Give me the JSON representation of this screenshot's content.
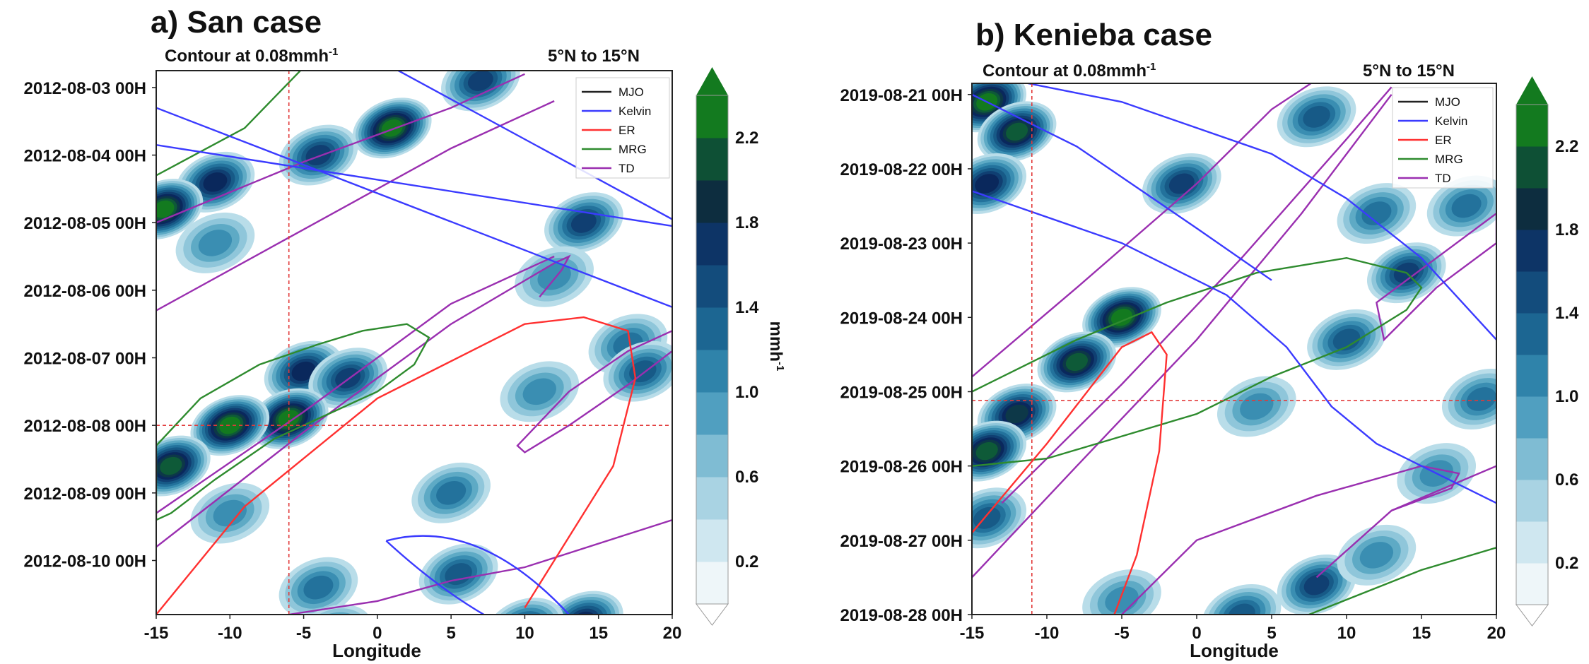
{
  "panels": [
    {
      "title": "a) San case",
      "contour_label": "Contour at 0.08mmh",
      "contour_sup": "-1",
      "lat_band": "5°N to 15°N",
      "xlabel": "Longitude",
      "x_ticks": [
        -15,
        -10,
        -5,
        0,
        5,
        10,
        15,
        20
      ],
      "xlim": [
        -15,
        20
      ],
      "y_dates": [
        "2012-08-03 00H",
        "2012-08-04 00H",
        "2012-08-05 00H",
        "2012-08-06 00H",
        "2012-08-07 00H",
        "2012-08-08 00H",
        "2012-08-09 00H",
        "2012-08-10 00H"
      ],
      "ylim_days": [
        -0.25,
        7.8
      ],
      "ref_lon": -6,
      "ref_day": 5,
      "legend": [
        "MJO",
        "Kelvin",
        "ER",
        "MRG",
        "TD"
      ],
      "colorbar_ticks": [
        "0.2",
        "0.6",
        "1.0",
        "1.4",
        "1.8",
        "2.2"
      ],
      "colorbar_unit": "mmh",
      "colorbar_unit_sup": "-1",
      "chart_data": {
        "type": "heatmap",
        "description_axes": "Hovmöller: longitude vs time",
        "color_levels": [
          0.2,
          0.4,
          0.6,
          0.8,
          1.0,
          1.2,
          1.4,
          1.6,
          1.8,
          2.0,
          2.2
        ],
        "blobs": [
          {
            "lon": 1.0,
            "day": 0.6,
            "value": 2.2
          },
          {
            "lon": -4,
            "day": 1.0,
            "value": 1.5
          },
          {
            "lon": -11,
            "day": 1.4,
            "value": 1.6
          },
          {
            "lon": -14.5,
            "day": 1.8,
            "value": 2.2
          },
          {
            "lon": 14,
            "day": 2.0,
            "value": 1.4
          },
          {
            "lon": -11,
            "day": 2.3,
            "value": 0.8
          },
          {
            "lon": 12,
            "day": 2.8,
            "value": 0.9
          },
          {
            "lon": -5,
            "day": 4.2,
            "value": 1.6
          },
          {
            "lon": -2,
            "day": 4.3,
            "value": 1.5
          },
          {
            "lon": -6,
            "day": 4.9,
            "value": 2.2
          },
          {
            "lon": -10,
            "day": 5.0,
            "value": 2.2
          },
          {
            "lon": -14,
            "day": 5.6,
            "value": 2.0
          },
          {
            "lon": 17,
            "day": 3.8,
            "value": 1.0
          },
          {
            "lon": 11,
            "day": 4.5,
            "value": 0.9
          },
          {
            "lon": 5,
            "day": 6.0,
            "value": 1.0
          },
          {
            "lon": 5.5,
            "day": 7.2,
            "value": 1.2
          },
          {
            "lon": 14,
            "day": 7.9,
            "value": 1.6
          },
          {
            "lon": -10,
            "day": 6.3,
            "value": 0.8
          },
          {
            "lon": -4,
            "day": 7.4,
            "value": 1.0
          },
          {
            "lon": -3,
            "day": 8.1,
            "value": 1.2
          },
          {
            "lon": 10,
            "day": 8.0,
            "value": 1.4
          },
          {
            "lon": 18,
            "day": 4.2,
            "value": 1.2
          },
          {
            "lon": 7,
            "day": -0.1,
            "value": 1.4
          }
        ],
        "kelvin": [
          [
            [
              -15,
              0.85
            ],
            [
              20,
              2.05
            ]
          ],
          [
            [
              1,
              -0.3
            ],
            [
              20,
              1.95
            ]
          ],
          [
            [
              -15,
              0.3
            ],
            [
              20,
              3.25
            ]
          ],
          {
            "ellipse": true,
            "lon": [
              0.6,
              13
            ],
            "days": [
              6.5,
              7.8
            ]
          }
        ],
        "er": [
          [
            [
              -15,
              7.8
            ],
            [
              -9,
              6.2
            ],
            [
              0,
              4.6
            ],
            [
              10,
              3.5
            ],
            [
              14,
              3.4
            ],
            [
              17,
              3.6
            ],
            [
              17.5,
              4.3
            ],
            [
              16,
              5.6
            ],
            [
              12,
              7.0
            ],
            [
              10,
              7.7
            ]
          ]
        ],
        "mrg": [
          [
            [
              -15,
              1.3
            ],
            [
              -9,
              0.6
            ],
            [
              -5,
              -0.3
            ]
          ],
          {
            "closed": true,
            "pts": [
              [
                -15,
                5.3
              ],
              [
                -12,
                4.6
              ],
              [
                -8,
                4.1
              ],
              [
                -4,
                3.8
              ],
              [
                -1,
                3.6
              ],
              [
                2,
                3.5
              ],
              [
                3.5,
                3.7
              ],
              [
                2.5,
                4.1
              ],
              [
                0,
                4.5
              ],
              [
                -3,
                4.8
              ],
              [
                -7,
                5.2
              ],
              [
                -11,
                5.8
              ],
              [
                -14,
                6.3
              ],
              [
                -15,
                6.4
              ],
              [
                -15,
                5.3
              ]
            ]
          }
        ],
        "td": [
          [
            [
              -15,
              3.3
            ],
            [
              -5,
              2.1
            ],
            [
              5,
              0.9
            ],
            [
              12,
              0.2
            ]
          ],
          [
            [
              -15,
              2.0
            ],
            [
              -5,
              1.1
            ],
            [
              5,
              0.3
            ],
            [
              10,
              -0.2
            ]
          ],
          [
            [
              -15,
              6.8
            ],
            [
              -5,
              5.1
            ],
            [
              5,
              3.5
            ],
            [
              12,
              2.6
            ],
            [
              13,
              2.5
            ],
            [
              12.5,
              2.7
            ],
            [
              11,
              3.1
            ]
          ],
          [
            [
              -15,
              6.3
            ],
            [
              -5,
              4.8
            ],
            [
              5,
              3.2
            ],
            [
              12,
              2.5
            ]
          ],
          {
            "closed": true,
            "pts": [
              [
                9.5,
                5.3
              ],
              [
                13,
                4.5
              ],
              [
                17,
                3.9
              ],
              [
                20,
                3.6
              ],
              [
                20,
                3.9
              ],
              [
                17,
                4.4
              ],
              [
                13,
                5.0
              ],
              [
                10,
                5.4
              ],
              [
                9.5,
                5.3
              ]
            ]
          },
          [
            [
              -6,
              7.8
            ],
            [
              0,
              7.6
            ],
            [
              5,
              7.3
            ],
            [
              10,
              7.1
            ],
            [
              20,
              6.4
            ]
          ]
        ]
      }
    },
    {
      "title": "b) Kenieba case",
      "contour_label": "Contour at 0.08mmh",
      "contour_sup": "-1",
      "lat_band": "5°N to 15°N",
      "xlabel": "Longitude",
      "x_ticks": [
        -15,
        -10,
        -5,
        0,
        5,
        10,
        15,
        20
      ],
      "xlim": [
        -15,
        20
      ],
      "y_dates": [
        "2019-08-21 00H",
        "2019-08-22 00H",
        "2019-08-23 00H",
        "2019-08-24 00H",
        "2019-08-25 00H",
        "2019-08-26 00H",
        "2019-08-27 00H",
        "2019-08-28 00H"
      ],
      "ylim_days": [
        -0.15,
        7.0
      ],
      "ref_lon": -11,
      "ref_day": 4.12,
      "legend": [
        "MJO",
        "Kelvin",
        "ER",
        "MRG",
        "TD"
      ],
      "colorbar_ticks": [
        "0.2",
        "0.6",
        "1.0",
        "1.4",
        "1.8",
        "2.2"
      ],
      "colorbar_unit": "",
      "colorbar_unit_sup": "",
      "chart_data": {
        "type": "heatmap",
        "description_axes": "Hovmöller: longitude vs time",
        "color_levels": [
          0.2,
          0.4,
          0.6,
          0.8,
          1.0,
          1.2,
          1.4,
          1.6,
          1.8,
          2.0,
          2.2
        ],
        "blobs": [
          {
            "lon": -14,
            "day": 0.1,
            "value": 2.2
          },
          {
            "lon": -12,
            "day": 0.5,
            "value": 2.0
          },
          {
            "lon": -14,
            "day": 1.2,
            "value": 1.6
          },
          {
            "lon": -5,
            "day": 3.0,
            "value": 2.2
          },
          {
            "lon": -8,
            "day": 3.6,
            "value": 2.0
          },
          {
            "lon": -12,
            "day": 4.3,
            "value": 1.8
          },
          {
            "lon": -14,
            "day": 4.8,
            "value": 2.0
          },
          {
            "lon": -14,
            "day": 5.7,
            "value": 1.2
          },
          {
            "lon": -1,
            "day": 1.2,
            "value": 1.4
          },
          {
            "lon": 8,
            "day": 0.3,
            "value": 1.2
          },
          {
            "lon": 12,
            "day": 1.6,
            "value": 1.0
          },
          {
            "lon": 14,
            "day": 2.4,
            "value": 1.4
          },
          {
            "lon": 10,
            "day": 3.3,
            "value": 1.2
          },
          {
            "lon": 18,
            "day": 1.5,
            "value": 1.0
          },
          {
            "lon": 4,
            "day": 4.2,
            "value": 0.8
          },
          {
            "lon": 8,
            "day": 6.6,
            "value": 1.4
          },
          {
            "lon": 3,
            "day": 7.0,
            "value": 1.2
          },
          {
            "lon": 12,
            "day": 6.2,
            "value": 0.9
          },
          {
            "lon": 19,
            "day": 4.1,
            "value": 1.0
          },
          {
            "lon": 16,
            "day": 5.1,
            "value": 0.9
          },
          {
            "lon": -5,
            "day": 6.8,
            "value": 0.8
          }
        ],
        "kelvin": [
          [
            [
              -15,
              -0.3
            ],
            [
              -5,
              0.1
            ],
            [
              5,
              0.8
            ],
            [
              10,
              1.4
            ],
            [
              15,
              2.2
            ],
            [
              20,
              3.3
            ]
          ],
          [
            [
              -15,
              1.3
            ],
            [
              -5,
              2.0
            ],
            [
              2,
              2.7
            ],
            [
              6,
              3.4
            ],
            [
              9,
              4.2
            ],
            [
              12,
              4.7
            ],
            [
              20,
              5.5
            ]
          ],
          [
            [
              -15,
              0.0
            ],
            [
              -8,
              0.7
            ],
            [
              0,
              1.8
            ],
            [
              5,
              2.5
            ]
          ]
        ],
        "er": [
          [
            [
              -15,
              5.9
            ],
            [
              -10,
              4.7
            ],
            [
              -5,
              3.4
            ],
            [
              -3,
              3.2
            ],
            [
              -2,
              3.5
            ],
            [
              -2.5,
              4.8
            ],
            [
              -4,
              6.2
            ],
            [
              -5.5,
              7.0
            ]
          ]
        ],
        "mrg": [
          {
            "closed": true,
            "pts": [
              [
                -15,
                4.0
              ],
              [
                -8,
                3.3
              ],
              [
                -2,
                2.8
              ],
              [
                4,
                2.4
              ],
              [
                10,
                2.2
              ],
              [
                14,
                2.4
              ],
              [
                15,
                2.6
              ],
              [
                14,
                2.9
              ],
              [
                10,
                3.4
              ],
              [
                5,
                3.8
              ],
              [
                0,
                4.3
              ],
              [
                -5,
                4.6
              ],
              [
                -10,
                4.9
              ],
              [
                -15,
                5.0
              ],
              [
                -15,
                4.0
              ]
            ]
          },
          [
            [
              5,
              7.2
            ],
            [
              15,
              6.4
            ],
            [
              20,
              6.1
            ]
          ]
        ],
        "td": [
          [
            [
              -15,
              3.8
            ],
            [
              -8,
              2.6
            ],
            [
              0,
              1.2
            ],
            [
              5,
              0.2
            ],
            [
              8,
              -0.2
            ]
          ],
          [
            [
              -13,
              5.5
            ],
            [
              -5,
              3.9
            ],
            [
              3,
              2.2
            ],
            [
              10,
              0.6
            ],
            [
              13,
              -0.1
            ]
          ],
          [
            [
              -15,
              6.5
            ],
            [
              -8,
              5.0
            ],
            [
              0,
              3.3
            ],
            [
              7,
              1.6
            ],
            [
              13,
              0.0
            ]
          ],
          [
            [
              -5,
              7.0
            ],
            [
              0,
              6.0
            ],
            [
              8,
              5.4
            ],
            [
              15,
              5.0
            ],
            [
              17.5,
              5.1
            ],
            [
              17,
              5.3
            ],
            [
              13,
              5.6
            ]
          ],
          {
            "closed": true,
            "pts": [
              [
                12,
                2.8
              ],
              [
                16,
                2.2
              ],
              [
                20,
                1.6
              ],
              [
                20,
                2.0
              ],
              [
                16,
                2.6
              ],
              [
                12.5,
                3.3
              ],
              [
                12,
                2.8
              ]
            ]
          },
          [
            [
              8,
              6.5
            ],
            [
              13,
              5.6
            ],
            [
              20,
              5.0
            ]
          ]
        ]
      }
    }
  ]
}
